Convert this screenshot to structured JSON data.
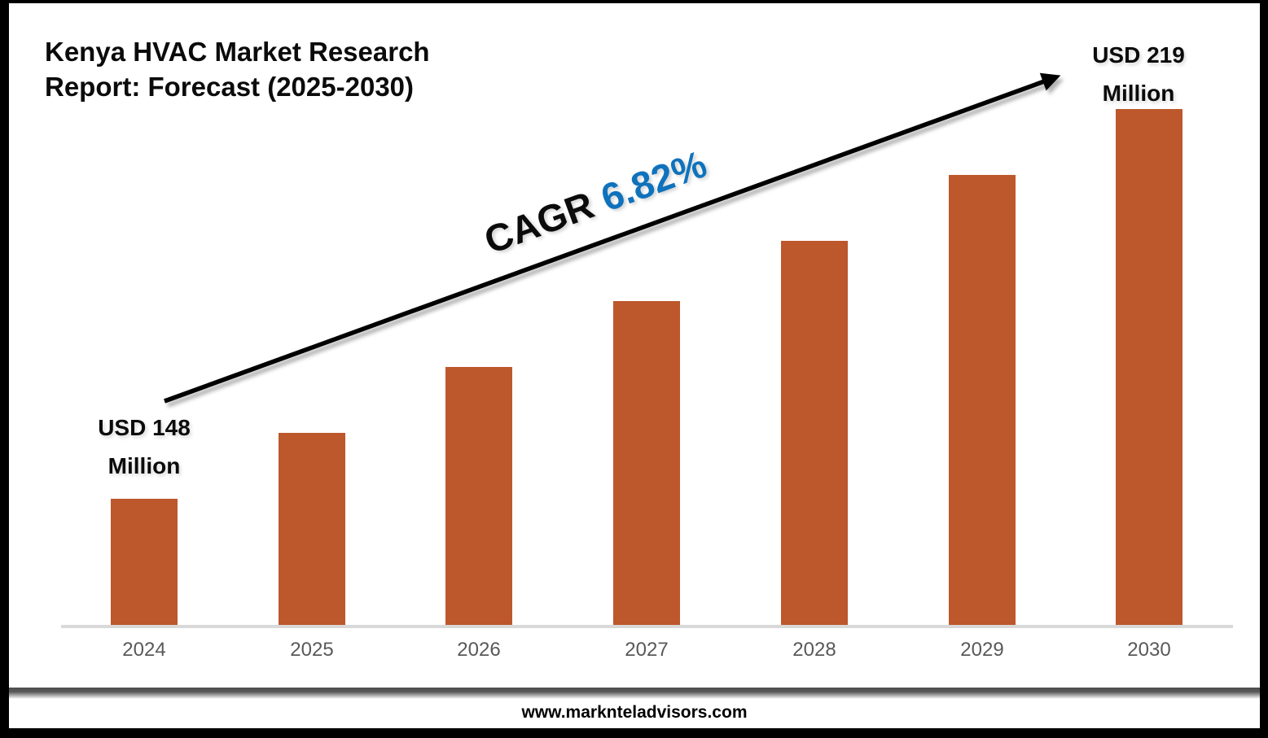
{
  "page": {
    "title_line1": "Kenya HVAC Market Research",
    "title_line2": "Report: Forecast (2025-2030)"
  },
  "chart_data": {
    "type": "bar",
    "title": "Kenya HVAC Market Research Report: Forecast (2025-2030)",
    "categories": [
      "2024",
      "2025",
      "2026",
      "2027",
      "2028",
      "2029",
      "2030"
    ],
    "values": [
      148,
      160,
      172,
      184,
      195,
      207,
      219
    ],
    "unit": "USD Million",
    "ylim": [
      125,
      222
    ],
    "grid": false,
    "legend": false,
    "y_axis_visible": false,
    "labeled_points": [
      {
        "category": "2024",
        "value": 148,
        "label": "USD 148 Million"
      },
      {
        "category": "2030",
        "value": 219,
        "label": "USD 219 Million"
      }
    ],
    "trend_annotation": {
      "text": "CAGR 6.82%",
      "cagr_percent": 6.82
    }
  },
  "annotations": {
    "first_label_line1": "USD 148",
    "first_label_line2": "Million",
    "last_label_line1": "USD 219",
    "last_label_line2": "Million",
    "cagr_prefix": "CAGR",
    "cagr_value": "6.82%"
  },
  "footer": {
    "website": "www.marknteladvisors.com"
  },
  "colors": {
    "bar": "#BD572C",
    "cagr_blue": "#0F72BC",
    "axis_line": "#D9D9D9",
    "tick_label": "#595959",
    "text": "#0B0B0B"
  }
}
